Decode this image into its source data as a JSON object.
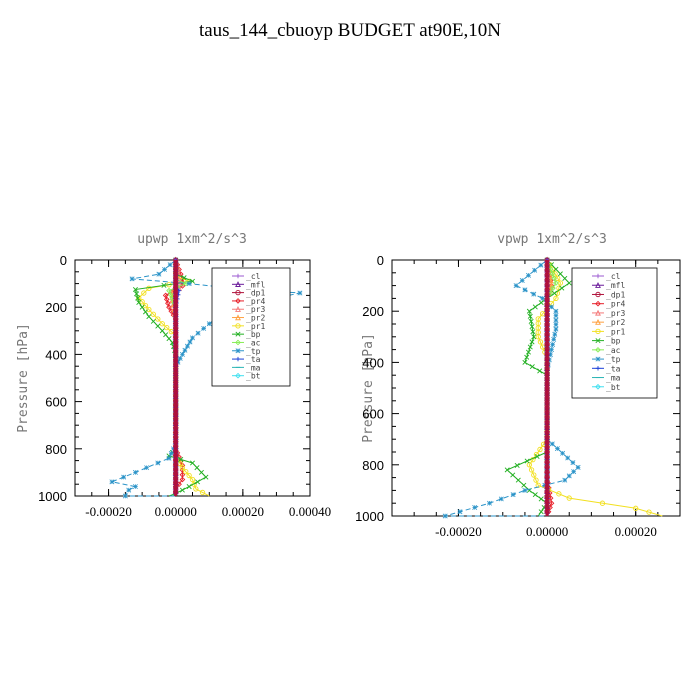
{
  "title": "taus_144_cbuoyp  BUDGET at90E,10N",
  "colors": {
    "_cl": "#9b59d0",
    "_mfl": "#6a1b9a",
    "_dp1": "#b0103a",
    "_pr4": "#e8202a",
    "_pr3": "#f47a7a",
    "_pr2": "#ffa040",
    "_pr1": "#f2e020",
    "_bp": "#22b022",
    "_ac": "#88ee55",
    "_tp": "#2a93c8",
    "_ta": "#1a3fd8",
    "_ma": "#2bb5b5",
    "_bt": "#40e0f0"
  },
  "chart_data": [
    {
      "type": "line",
      "title": "upwp   1xm^2/s^3",
      "ylabel": "Pressure [hPa]",
      "xlabel": "",
      "xlim": [
        -0.0003,
        0.0004
      ],
      "ylim": [
        1000,
        0
      ],
      "y_reversed": true,
      "xticks": [
        -0.0002,
        0.0,
        0.0002,
        0.0004
      ],
      "xtick_labels": [
        "-0.00020",
        "0.00000",
        "0.00020",
        "0.00040"
      ],
      "yticks": [
        0,
        200,
        400,
        600,
        800,
        1000
      ],
      "ytick_labels": [
        "0",
        "200",
        "400",
        "600",
        "800",
        "1000"
      ],
      "legend": [
        "_cl",
        "_mfl",
        "_dp1",
        "_pr4",
        "_pr3",
        "_pr2",
        "_pr1",
        "_bp",
        "_ac",
        "_tp",
        "_ta",
        "_ma",
        "_bt"
      ],
      "legend_position": "top-right",
      "series": [
        {
          "name": "_cl",
          "x": [
            0,
            0,
            0,
            0,
            0
          ],
          "y": [
            0,
            250,
            500,
            750,
            1000
          ]
        },
        {
          "name": "_mfl",
          "x": [
            0,
            0,
            0,
            0,
            0
          ],
          "y": [
            0,
            250,
            500,
            750,
            1000
          ]
        },
        {
          "name": "_dp1",
          "x": [
            0,
            0,
            0,
            0,
            0
          ],
          "y": [
            0,
            250,
            500,
            750,
            1000
          ]
        },
        {
          "name": "_pr4",
          "x": [
            0,
            2e-05,
            2e-05,
            -3e-05,
            -2e-05,
            0,
            0,
            0,
            2e-05,
            2e-05,
            0,
            0
          ],
          "y": [
            0,
            80,
            110,
            150,
            200,
            250,
            400,
            800,
            870,
            930,
            970,
            1000
          ]
        },
        {
          "name": "_pr3",
          "x": [
            0,
            1e-05,
            1e-05,
            -1e-05,
            0,
            0,
            0
          ],
          "y": [
            0,
            80,
            120,
            170,
            220,
            400,
            1000
          ]
        },
        {
          "name": "_pr2",
          "x": [
            0,
            0,
            -1e-05,
            0,
            0,
            0
          ],
          "y": [
            0,
            100,
            150,
            250,
            500,
            1000
          ]
        },
        {
          "name": "_pr1",
          "x": [
            0,
            0,
            4e-05,
            -8e-05,
            -0.00011,
            -8e-05,
            -4e-05,
            0,
            0,
            2e-05,
            5e-05,
            6e-05,
            0.0001
          ],
          "y": [
            0,
            70,
            90,
            120,
            160,
            210,
            270,
            320,
            830,
            880,
            930,
            970,
            1000
          ]
        },
        {
          "name": "_bp",
          "x": [
            0,
            0,
            5e-05,
            -0.00012,
            -0.00011,
            -8e-05,
            -4e-05,
            -1e-05,
            0,
            0,
            -2e-05,
            5e-05,
            9e-05,
            4e-05,
            0,
            -2e-05
          ],
          "y": [
            0,
            60,
            90,
            125,
            180,
            240,
            300,
            350,
            400,
            800,
            830,
            860,
            920,
            960,
            990,
            1000
          ]
        },
        {
          "name": "_ac",
          "x": [
            0,
            0,
            3e-05,
            -2e-05,
            0,
            0
          ],
          "y": [
            0,
            80,
            100,
            130,
            200,
            1000
          ]
        },
        {
          "name": "_tp",
          "x": [
            0,
            -5e-05,
            -0.00013,
            4e-05,
            0.00017,
            0.00037,
            0.00017,
            0.0001,
            5e-05,
            2e-05,
            0,
            0,
            -2e-05,
            -0.00012,
            -0.00019,
            -0.00012,
            -0.00014,
            -0.00015,
            0
          ],
          "y": [
            0,
            60,
            80,
            100,
            120,
            140,
            200,
            270,
            330,
            400,
            450,
            780,
            840,
            900,
            940,
            960,
            975,
            1000,
            1000
          ]
        },
        {
          "name": "_ta",
          "x": [
            0,
            0,
            1e-05,
            0,
            0
          ],
          "y": [
            0,
            110,
            130,
            200,
            1000
          ]
        },
        {
          "name": "_ma",
          "x": [
            0,
            0,
            0
          ],
          "y": [
            0,
            500,
            1000
          ]
        },
        {
          "name": "_bt",
          "x": [
            0,
            0,
            0
          ],
          "y": [
            0,
            500,
            1000
          ]
        }
      ]
    },
    {
      "type": "line",
      "title": "vpwp   1xm^2/s^3",
      "ylabel": "Pressure [hPa]",
      "xlabel": "",
      "xlim": [
        -0.00035,
        0.0003
      ],
      "ylim": [
        1000,
        0
      ],
      "y_reversed": true,
      "xticks": [
        -0.0002,
        0.0,
        0.0002
      ],
      "xtick_labels": [
        "-0.00020",
        "0.00000",
        "0.00020"
      ],
      "yticks": [
        0,
        200,
        400,
        600,
        800,
        1000
      ],
      "ytick_labels": [
        "0",
        "200",
        "400",
        "600",
        "800",
        "1000"
      ],
      "legend": [
        "_cl",
        "_mfl",
        "_dp1",
        "_pr4",
        "_pr3",
        "_pr2",
        "_pr1",
        "_bp",
        "_ac",
        "_tp",
        "_ta",
        "_ma",
        "_bt"
      ],
      "legend_position": "top-right",
      "series": [
        {
          "name": "_cl",
          "x": [
            0,
            0,
            0,
            0,
            0
          ],
          "y": [
            0,
            250,
            500,
            750,
            1000
          ]
        },
        {
          "name": "_mfl",
          "x": [
            0,
            0,
            0,
            0,
            0
          ],
          "y": [
            0,
            250,
            500,
            750,
            1000
          ]
        },
        {
          "name": "_dp1",
          "x": [
            0,
            0,
            0,
            0,
            0
          ],
          "y": [
            0,
            250,
            500,
            750,
            1000
          ]
        },
        {
          "name": "_pr4",
          "x": [
            0,
            1e-05,
            0,
            0,
            1e-05,
            0
          ],
          "y": [
            0,
            100,
            150,
            850,
            950,
            1000
          ]
        },
        {
          "name": "_pr3",
          "x": [
            0,
            1e-05,
            0,
            0,
            0
          ],
          "y": [
            0,
            100,
            150,
            500,
            1000
          ]
        },
        {
          "name": "_pr2",
          "x": [
            0,
            1e-05,
            0,
            0,
            0
          ],
          "y": [
            0,
            100,
            150,
            500,
            1000
          ]
        },
        {
          "name": "_pr1",
          "x": [
            0,
            3e-05,
            2e-05,
            -2e-05,
            -2e-05,
            0,
            0,
            -4e-05,
            -2e-05,
            5e-05,
            0.0002,
            0.00026
          ],
          "y": [
            0,
            90,
            150,
            230,
            300,
            380,
            700,
            800,
            880,
            930,
            970,
            1000
          ]
        },
        {
          "name": "_bp",
          "x": [
            0,
            5e-05,
            0,
            -4e-05,
            -3e-05,
            -5e-05,
            0,
            0,
            -9e-05,
            -4e-05,
            0,
            -2e-05
          ],
          "y": [
            0,
            90,
            150,
            200,
            300,
            400,
            450,
            750,
            820,
            900,
            950,
            1000
          ]
        },
        {
          "name": "_ac",
          "x": [
            0,
            2e-05,
            0,
            0
          ],
          "y": [
            0,
            90,
            150,
            1000
          ]
        },
        {
          "name": "_tp",
          "x": [
            0,
            -7e-05,
            -1e-05,
            2e-05,
            2e-05,
            1e-05,
            0,
            0,
            7e-05,
            4e-05,
            -5e-05,
            -0.00013,
            -0.00023,
            0
          ],
          "y": [
            0,
            100,
            150,
            200,
            270,
            350,
            430,
            700,
            810,
            860,
            900,
            950,
            1000,
            1000
          ]
        },
        {
          "name": "_ta",
          "x": [
            0,
            0,
            0
          ],
          "y": [
            0,
            500,
            1000
          ]
        },
        {
          "name": "_ma",
          "x": [
            0,
            0,
            0
          ],
          "y": [
            0,
            500,
            1000
          ]
        },
        {
          "name": "_bt",
          "x": [
            0,
            0,
            0
          ],
          "y": [
            0,
            500,
            1000
          ]
        }
      ]
    }
  ]
}
